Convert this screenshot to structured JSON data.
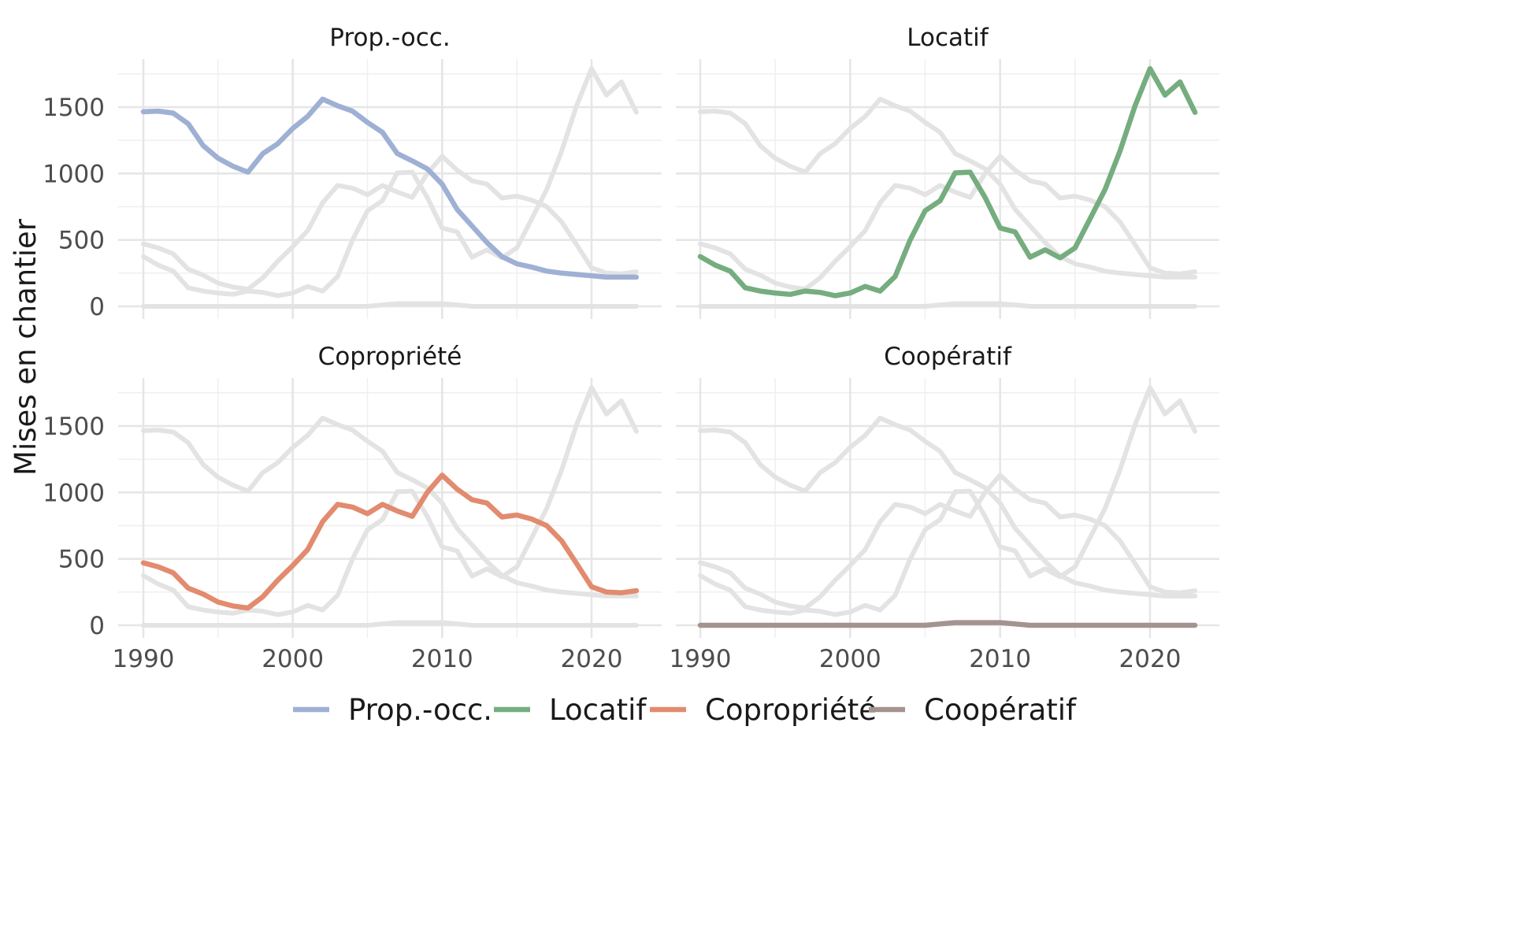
{
  "chart_data": {
    "type": "line",
    "ylabel": "Mises en chantier",
    "xlabel": "",
    "x": [
      1990,
      1991,
      1992,
      1993,
      1994,
      1995,
      1996,
      1997,
      1998,
      1999,
      2000,
      2001,
      2002,
      2003,
      2004,
      2005,
      2006,
      2007,
      2008,
      2009,
      2010,
      2011,
      2012,
      2013,
      2014,
      2015,
      2016,
      2017,
      2018,
      2019,
      2020,
      2021,
      2022,
      2023
    ],
    "xlim": [
      1990,
      2023
    ],
    "ylim": [
      0,
      1800
    ],
    "x_ticks": [
      1990,
      2000,
      2010,
      2020
    ],
    "y_ticks": [
      0,
      500,
      1000,
      1500
    ],
    "x_tick_labels": [
      "1990",
      "2000",
      "2010",
      "2020"
    ],
    "y_tick_labels": [
      "0",
      "500",
      "1000",
      "1500"
    ],
    "grid": true,
    "legend_position": "bottom",
    "facets": [
      "Prop.-occ.",
      "Locatif",
      "Copropriété",
      "Coopératif"
    ],
    "series": [
      {
        "name": "Prop.-occ.",
        "color": "#9fb0d5",
        "values": [
          1465,
          1470,
          1455,
          1375,
          1210,
          1115,
          1055,
          1010,
          1150,
          1225,
          1340,
          1430,
          1560,
          1510,
          1470,
          1385,
          1310,
          1150,
          1095,
          1035,
          920,
          730,
          605,
          480,
          375,
          320,
          295,
          265,
          250,
          240,
          230,
          220,
          220,
          220
        ]
      },
      {
        "name": "Locatif",
        "color": "#75ad7f",
        "values": [
          375,
          310,
          265,
          140,
          115,
          100,
          90,
          115,
          105,
          80,
          100,
          150,
          115,
          225,
          500,
          720,
          795,
          1005,
          1010,
          820,
          590,
          560,
          370,
          425,
          365,
          440,
          660,
          880,
          1170,
          1510,
          1790,
          1590,
          1690,
          1460
        ]
      },
      {
        "name": "Copropriété",
        "color": "#e28b6e",
        "values": [
          470,
          440,
          395,
          280,
          235,
          175,
          145,
          130,
          215,
          340,
          450,
          570,
          780,
          910,
          890,
          840,
          910,
          860,
          820,
          1000,
          1130,
          1025,
          945,
          920,
          815,
          830,
          800,
          750,
          635,
          465,
          290,
          250,
          245,
          260
        ]
      },
      {
        "name": "Coopératif",
        "color": "#a4938f",
        "values": [
          0,
          0,
          0,
          0,
          0,
          0,
          0,
          0,
          0,
          0,
          0,
          0,
          0,
          0,
          0,
          0,
          10,
          20,
          20,
          20,
          20,
          10,
          0,
          0,
          0,
          0,
          0,
          0,
          0,
          0,
          0,
          0,
          0,
          0
        ]
      }
    ]
  }
}
